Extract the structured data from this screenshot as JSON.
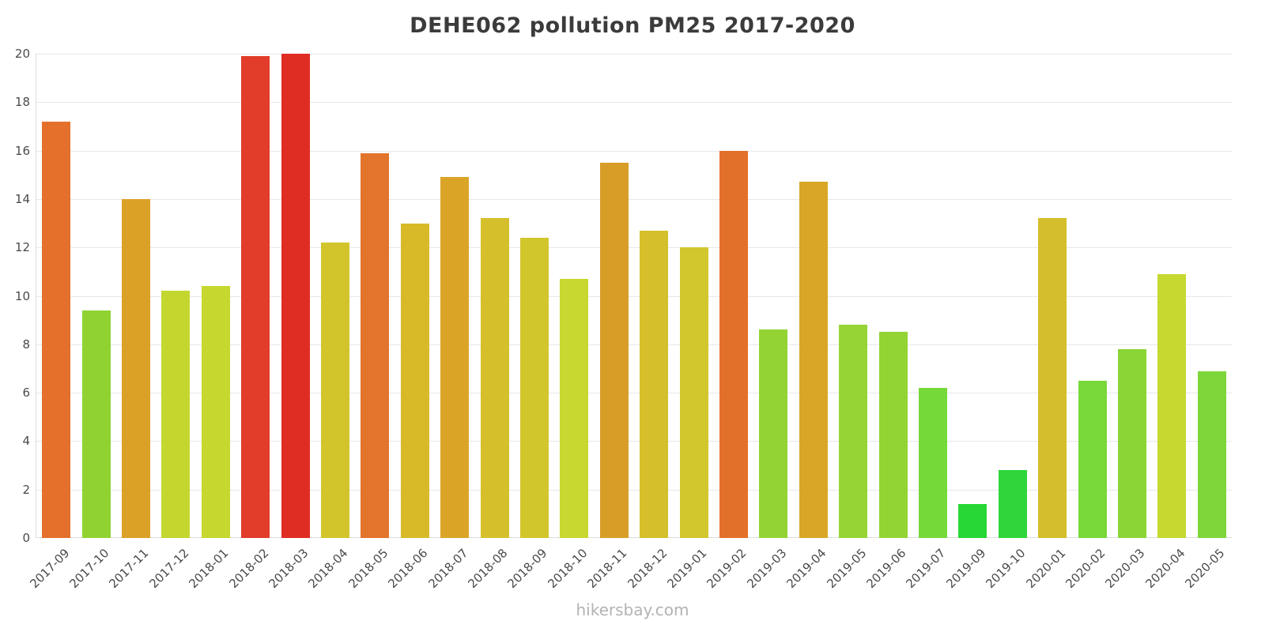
{
  "title": "DEHE062 pollution PM25 2017-2020",
  "watermark": "hikersbay.com",
  "chart_data": {
    "type": "bar",
    "title": "DEHE062 pollution PM25 2017-2020",
    "xlabel": "",
    "ylabel": "",
    "ylim": [
      0,
      20
    ],
    "ytick_step": 2,
    "grid": true,
    "legend": "none",
    "categories": [
      "2017-09",
      "2017-10",
      "2017-11",
      "2017-12",
      "2018-01",
      "2018-02",
      "2018-03",
      "2018-04",
      "2018-05",
      "2018-06",
      "2018-07",
      "2018-08",
      "2018-09",
      "2018-10",
      "2018-11",
      "2018-12",
      "2019-01",
      "2019-02",
      "2019-03",
      "2019-04",
      "2019-05",
      "2019-06",
      "2019-07",
      "2019-09",
      "2019-10",
      "2020-01",
      "2020-02",
      "2020-03",
      "2020-04",
      "2020-05"
    ],
    "values": [
      17.2,
      9.4,
      14.0,
      10.2,
      10.4,
      19.9,
      20.0,
      12.2,
      15.9,
      13.0,
      14.9,
      13.2,
      12.4,
      10.7,
      15.5,
      12.7,
      12.0,
      16.0,
      8.6,
      14.7,
      8.8,
      8.5,
      6.2,
      1.4,
      2.8,
      13.2,
      6.5,
      7.8,
      10.9,
      6.9
    ],
    "bar_colors": [
      "#e4702b",
      "#90d232",
      "#dba127",
      "#c3d72f",
      "#c6d830",
      "#e23c2a",
      "#e02d23",
      "#d2c52c",
      "#e3742c",
      "#d8ba29",
      "#daa527",
      "#d5c02b",
      "#d2c62d",
      "#c8d830",
      "#d89d26",
      "#d5bf2b",
      "#d2c72d",
      "#e3702a",
      "#93d434",
      "#d9a627",
      "#95d434",
      "#92d434",
      "#76d93a",
      "#27d735",
      "#2fd53b",
      "#d4be2b",
      "#79d83a",
      "#8bd536",
      "#c5d930",
      "#7ed73a"
    ],
    "gridline_color": "#e7e7e7",
    "axis_text_color": "#4a4a4a",
    "title_color": "#3b3b3b",
    "watermark_color": "#b3b3b3"
  }
}
